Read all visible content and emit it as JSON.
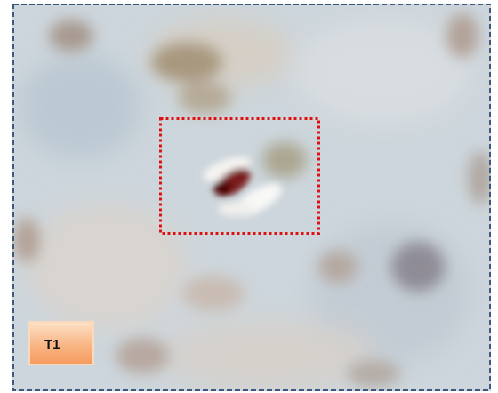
{
  "label": "T1"
}
